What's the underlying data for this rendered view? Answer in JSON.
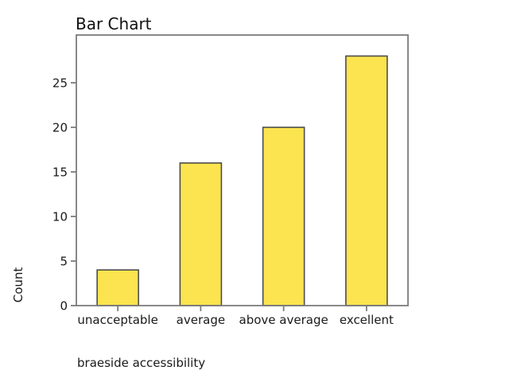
{
  "chart_data": {
    "type": "bar",
    "title": "Bar Chart",
    "xlabel": "braeside accessibility",
    "ylabel": "Count",
    "categories": [
      "unacceptable",
      "average",
      "above average",
      "excellent"
    ],
    "values": [
      4,
      16,
      20,
      28
    ],
    "yticks": [
      0,
      5,
      10,
      15,
      20,
      25
    ],
    "ylim": [
      0,
      30
    ],
    "grid": false,
    "legend": "none",
    "colors": {
      "bar_fill": "#FBE44F",
      "bar_border": "#4D4D4D",
      "frame": "#7C7C7C",
      "text": "#1A1A1A"
    }
  }
}
